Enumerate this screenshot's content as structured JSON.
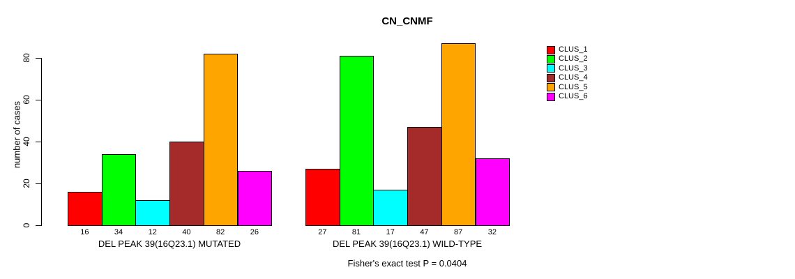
{
  "window": {
    "background_color": "#FFFFFF"
  },
  "chart_data": {
    "type": "bar",
    "title": "CN_CNMF",
    "ylabel": "number of cases",
    "xlabel": "",
    "ylim": [
      0,
      87
    ],
    "yticks": [
      0,
      20,
      40,
      60,
      80
    ],
    "grid": false,
    "legend_position": "right",
    "bar_border_color": "#000000",
    "series": [
      {
        "name": "CLUS_1",
        "color": "#FF0000"
      },
      {
        "name": "CLUS_2",
        "color": "#00FF00"
      },
      {
        "name": "CLUS_3",
        "color": "#00FFFF"
      },
      {
        "name": "CLUS_4",
        "color": "#A52A2A"
      },
      {
        "name": "CLUS_5",
        "color": "#FFA500"
      },
      {
        "name": "CLUS_6",
        "color": "#FF00FF"
      }
    ],
    "groups": [
      {
        "label": "DEL PEAK 39(16Q23.1) MUTATED",
        "values": [
          16,
          34,
          12,
          40,
          82,
          26
        ]
      },
      {
        "label": "DEL PEAK 39(16Q23.1) WILD-TYPE",
        "values": [
          27,
          81,
          17,
          47,
          87,
          32
        ]
      }
    ],
    "bar_value_labels_shown": true,
    "footnote": "Fisher's exact test P = 0.0404"
  }
}
